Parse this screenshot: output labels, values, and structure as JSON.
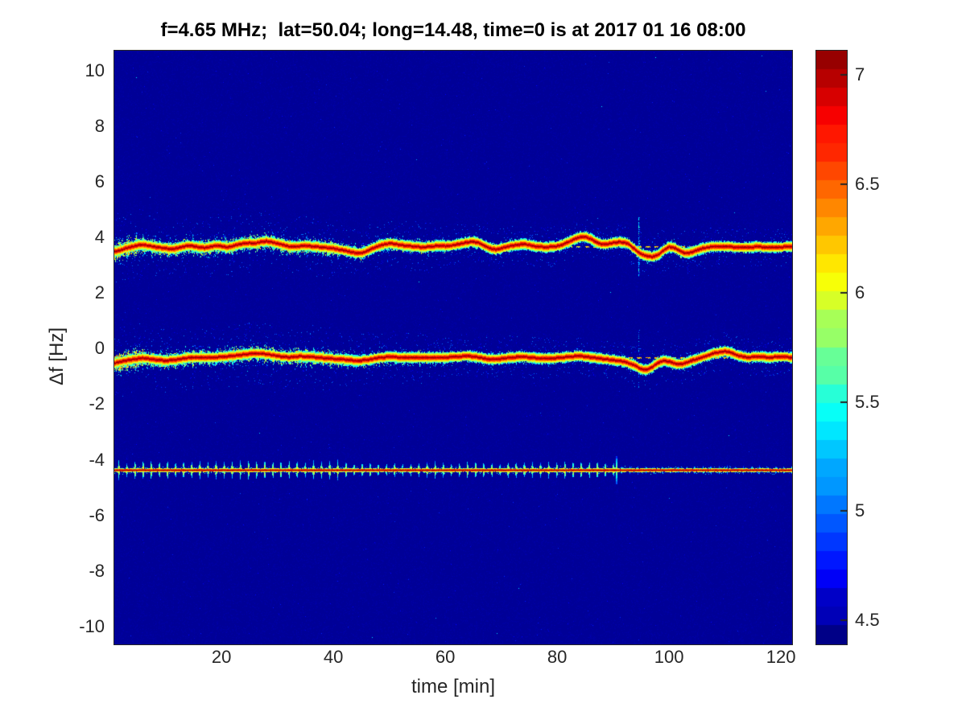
{
  "figure": {
    "title": "f=4.65 MHz;  lat=50.04; long=14.48, time=0 is at 2017 01 16 08:00"
  },
  "axes": {
    "xlabel": "time [min]",
    "ylabel": "Δf [Hz]",
    "tick_label_color": "#262626",
    "frame_color": "#262626",
    "background_color": "#ffffff"
  },
  "chart_data": {
    "type": "heatmap",
    "title": "f=4.65 MHz;  lat=50.04; long=14.48, time=0 is at 2017 01 16 08:00",
    "xlabel": "time [min]",
    "ylabel": "Δf [Hz]",
    "x_ticks": [
      20,
      40,
      60,
      80,
      100,
      120
    ],
    "y_ticks": [
      10,
      8,
      6,
      4,
      2,
      0,
      -2,
      -4,
      -6,
      -8,
      -10
    ],
    "xlim": [
      0.85,
      122.0
    ],
    "ylim": [
      -10.64,
      10.72
    ],
    "colormap": "jet",
    "color_axis": [
      4.39,
      7.11
    ],
    "colorbar_ticks": [
      7,
      6.5,
      6,
      5.5,
      5,
      4.5
    ],
    "colorbar_levels": 32,
    "background_value": 4.44,
    "stripe_period_min": 1.45,
    "seed": 20170116,
    "bands": [
      {
        "name": "upper-echo-band",
        "kind": "wavy",
        "center_hz": 3.7,
        "dash_line_hz": 3.68,
        "dash_start_min": 50,
        "waypoints": [
          [
            1,
            3.5
          ],
          [
            2,
            3.56
          ],
          [
            3,
            3.63
          ],
          [
            4,
            3.68
          ],
          [
            5,
            3.73
          ],
          [
            6,
            3.75
          ],
          [
            7,
            3.72
          ],
          [
            8,
            3.68
          ],
          [
            9,
            3.65
          ],
          [
            10,
            3.62
          ],
          [
            11,
            3.6
          ],
          [
            12,
            3.62
          ],
          [
            13,
            3.68
          ],
          [
            14,
            3.72
          ],
          [
            15,
            3.7
          ],
          [
            16,
            3.66
          ],
          [
            17,
            3.64
          ],
          [
            18,
            3.68
          ],
          [
            19,
            3.72
          ],
          [
            20,
            3.7
          ],
          [
            21,
            3.66
          ],
          [
            22,
            3.7
          ],
          [
            23,
            3.76
          ],
          [
            24,
            3.8
          ],
          [
            25,
            3.82
          ],
          [
            26,
            3.8
          ],
          [
            27,
            3.85
          ],
          [
            28,
            3.88
          ],
          [
            29,
            3.85
          ],
          [
            30,
            3.8
          ],
          [
            31,
            3.75
          ],
          [
            32,
            3.7
          ],
          [
            33,
            3.68
          ],
          [
            34,
            3.7
          ],
          [
            35,
            3.72
          ],
          [
            36,
            3.7
          ],
          [
            37,
            3.68
          ],
          [
            38,
            3.66
          ],
          [
            39,
            3.64
          ],
          [
            40,
            3.62
          ],
          [
            41,
            3.58
          ],
          [
            42,
            3.55
          ],
          [
            43,
            3.5
          ],
          [
            44,
            3.46
          ],
          [
            45,
            3.44
          ],
          [
            46,
            3.52
          ],
          [
            47,
            3.62
          ],
          [
            48,
            3.7
          ],
          [
            49,
            3.76
          ],
          [
            50,
            3.8
          ],
          [
            51,
            3.78
          ],
          [
            52,
            3.74
          ],
          [
            53,
            3.72
          ],
          [
            54,
            3.7
          ],
          [
            55,
            3.68
          ],
          [
            56,
            3.66
          ],
          [
            57,
            3.68
          ],
          [
            58,
            3.7
          ],
          [
            59,
            3.72
          ],
          [
            60,
            3.7
          ],
          [
            61,
            3.72
          ],
          [
            62,
            3.76
          ],
          [
            63,
            3.8
          ],
          [
            64,
            3.84
          ],
          [
            65,
            3.86
          ],
          [
            66,
            3.82
          ],
          [
            67,
            3.72
          ],
          [
            68,
            3.62
          ],
          [
            69,
            3.58
          ],
          [
            70,
            3.62
          ],
          [
            71,
            3.68
          ],
          [
            72,
            3.72
          ],
          [
            73,
            3.75
          ],
          [
            74,
            3.78
          ],
          [
            75,
            3.74
          ],
          [
            76,
            3.7
          ],
          [
            77,
            3.68
          ],
          [
            78,
            3.66
          ],
          [
            79,
            3.68
          ],
          [
            80,
            3.7
          ],
          [
            81,
            3.76
          ],
          [
            82,
            3.85
          ],
          [
            83,
            3.95
          ],
          [
            84,
            4.02
          ],
          [
            85,
            4.04
          ],
          [
            86,
            3.96
          ],
          [
            87,
            3.85
          ],
          [
            88,
            3.76
          ],
          [
            89,
            3.78
          ],
          [
            90,
            3.82
          ],
          [
            91,
            3.85
          ],
          [
            92,
            3.84
          ],
          [
            93,
            3.76
          ],
          [
            94,
            3.56
          ],
          [
            95,
            3.42
          ],
          [
            96,
            3.35
          ],
          [
            97,
            3.32
          ],
          [
            98,
            3.38
          ],
          [
            99,
            3.55
          ],
          [
            100,
            3.68
          ],
          [
            101,
            3.64
          ],
          [
            102,
            3.52
          ],
          [
            103,
            3.44
          ],
          [
            104,
            3.48
          ],
          [
            105,
            3.56
          ],
          [
            106,
            3.62
          ],
          [
            107,
            3.66
          ],
          [
            108,
            3.7
          ],
          [
            110,
            3.7
          ],
          [
            112,
            3.66
          ],
          [
            114,
            3.66
          ],
          [
            116,
            3.68
          ],
          [
            118,
            3.65
          ],
          [
            120,
            3.67
          ],
          [
            122,
            3.68
          ]
        ],
        "envelope": [
          [
            6,
            0.48,
            34
          ],
          [
            40,
            0.42,
            27
          ],
          [
            60,
            0.35,
            20
          ],
          [
            80,
            0.28,
            14
          ],
          [
            93,
            0.24,
            10
          ],
          [
            108,
            0.3,
            12
          ],
          [
            122,
            0.26,
            10
          ]
        ]
      },
      {
        "name": "middle-echo-band",
        "kind": "wavy",
        "center_hz": -0.3,
        "dash_line_hz": -0.32,
        "dash_start_min": 55,
        "waypoints": [
          [
            1,
            -0.5
          ],
          [
            2,
            -0.45
          ],
          [
            4,
            -0.38
          ],
          [
            6,
            -0.32
          ],
          [
            8,
            -0.38
          ],
          [
            10,
            -0.42
          ],
          [
            12,
            -0.38
          ],
          [
            14,
            -0.32
          ],
          [
            16,
            -0.3
          ],
          [
            18,
            -0.32
          ],
          [
            20,
            -0.28
          ],
          [
            22,
            -0.25
          ],
          [
            24,
            -0.2
          ],
          [
            26,
            -0.15
          ],
          [
            28,
            -0.18
          ],
          [
            30,
            -0.25
          ],
          [
            32,
            -0.3
          ],
          [
            34,
            -0.26
          ],
          [
            36,
            -0.28
          ],
          [
            38,
            -0.32
          ],
          [
            40,
            -0.35
          ],
          [
            42,
            -0.38
          ],
          [
            44,
            -0.42
          ],
          [
            46,
            -0.4
          ],
          [
            48,
            -0.32
          ],
          [
            50,
            -0.28
          ],
          [
            52,
            -0.3
          ],
          [
            54,
            -0.32
          ],
          [
            56,
            -0.3
          ],
          [
            58,
            -0.32
          ],
          [
            60,
            -0.3
          ],
          [
            62,
            -0.28
          ],
          [
            64,
            -0.25
          ],
          [
            66,
            -0.3
          ],
          [
            68,
            -0.38
          ],
          [
            70,
            -0.35
          ],
          [
            72,
            -0.3
          ],
          [
            74,
            -0.28
          ],
          [
            76,
            -0.32
          ],
          [
            78,
            -0.35
          ],
          [
            80,
            -0.32
          ],
          [
            82,
            -0.28
          ],
          [
            84,
            -0.25
          ],
          [
            86,
            -0.3
          ],
          [
            88,
            -0.35
          ],
          [
            90,
            -0.4
          ],
          [
            92,
            -0.45
          ],
          [
            94,
            -0.6
          ],
          [
            95,
            -0.72
          ],
          [
            96,
            -0.75
          ],
          [
            97,
            -0.65
          ],
          [
            98,
            -0.5
          ],
          [
            99,
            -0.42
          ],
          [
            100,
            -0.45
          ],
          [
            101,
            -0.52
          ],
          [
            102,
            -0.55
          ],
          [
            103,
            -0.5
          ],
          [
            104,
            -0.42
          ],
          [
            106,
            -0.3
          ],
          [
            108,
            -0.15
          ],
          [
            110,
            -0.08
          ],
          [
            111,
            -0.12
          ],
          [
            112,
            -0.22
          ],
          [
            114,
            -0.3
          ],
          [
            116,
            -0.28
          ],
          [
            118,
            -0.3
          ],
          [
            120,
            -0.28
          ],
          [
            122,
            -0.3
          ]
        ],
        "envelope": [
          [
            6,
            0.5,
            36
          ],
          [
            40,
            0.44,
            28
          ],
          [
            60,
            0.36,
            20
          ],
          [
            80,
            0.3,
            15
          ],
          [
            92,
            0.26,
            11
          ],
          [
            106,
            0.3,
            12
          ],
          [
            122,
            0.26,
            11
          ]
        ]
      },
      {
        "name": "carrier-comb-band",
        "kind": "comb",
        "center_hz": -4.36,
        "spike_period_min": 1.45,
        "spike_height_hz": [
          [
            43,
            0.33
          ],
          [
            60,
            0.27
          ],
          [
            90.6,
            0.31
          ],
          [
            122,
            0.15
          ]
        ],
        "transition_min": 90.6,
        "tall_spike": {
          "t": 90.6,
          "height_hz": 0.5
        }
      }
    ],
    "glitches": [
      {
        "t": 94.5,
        "f0": 2.6,
        "f1": 4.75,
        "density": 0.8,
        "vmin": 4.8,
        "vmax": 5.6
      },
      {
        "t": 94.5,
        "f0": -1.4,
        "f1": 0.7,
        "density": 0.45,
        "vmin": 4.7,
        "vmax": 5.3
      }
    ]
  }
}
